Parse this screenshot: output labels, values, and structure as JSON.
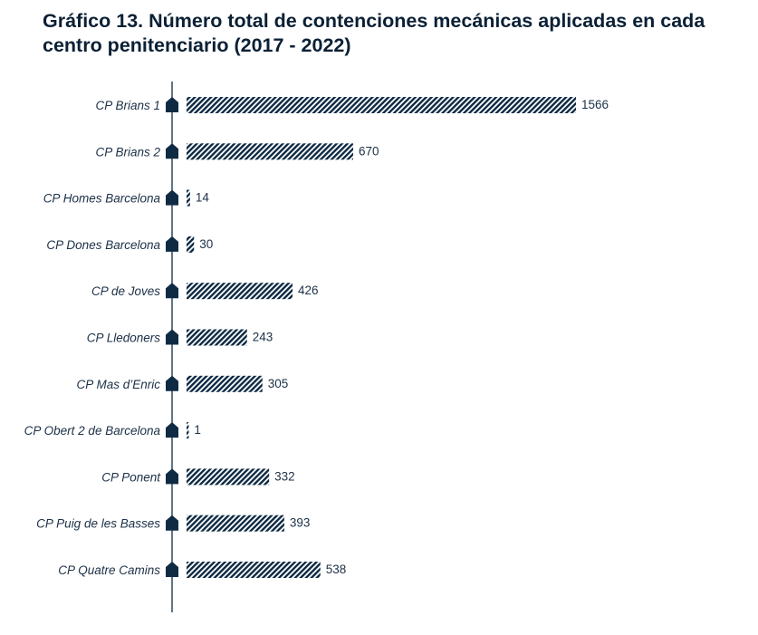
{
  "title": "Gráfico 13. Número total de contenciones mecánicas aplicadas en cada centro penitenciario (2017 - 2022)",
  "colors": {
    "bar": "#0f2b44",
    "axis": "#0f2b44",
    "text": "#1c3047"
  },
  "chart_data": {
    "type": "bar",
    "orientation": "horizontal",
    "title": "Gráfico 13. Número total de contenciones mecánicas aplicadas en cada centro penitenciario (2017 - 2022)",
    "xlabel": "",
    "ylabel": "",
    "grid": false,
    "bar_pattern": "diagonal-hatch",
    "categories": [
      "CP Brians 1",
      "CP Brians 2",
      "CP Homes Barcelona",
      "CP Dones Barcelona",
      "CP de Joves",
      "CP Lledoners",
      "CP Mas d’Enric",
      "CP Obert 2 de Barcelona",
      "CP Ponent",
      "CP Puig de les Basses",
      "CP Quatre Camins"
    ],
    "values": [
      1566,
      670,
      14,
      30,
      426,
      243,
      305,
      1,
      332,
      393,
      538
    ],
    "xlim": [
      0,
      1566
    ]
  }
}
